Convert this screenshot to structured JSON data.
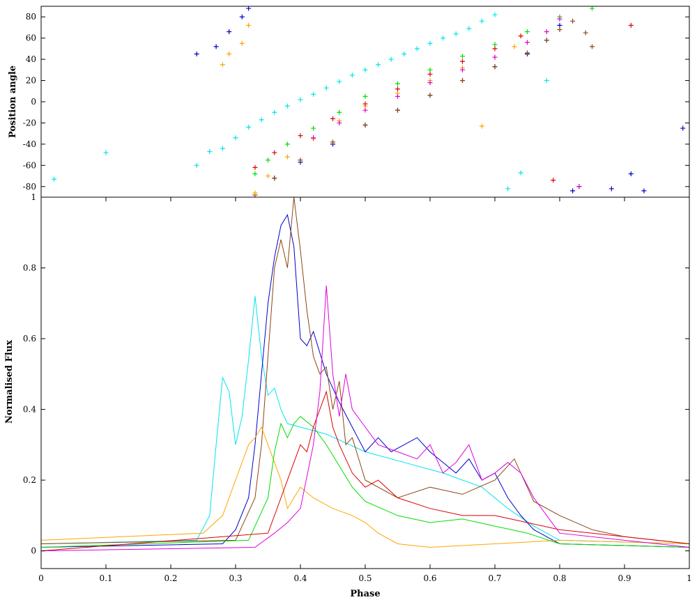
{
  "chart_data": [
    {
      "type": "scatter",
      "panel": "top",
      "ylabel": "Position angle",
      "xlabel": "",
      "xlim": [
        0,
        1
      ],
      "ylim": [
        -90,
        90
      ],
      "yticks": [
        "80",
        "60",
        "40",
        "20",
        "0",
        "-20",
        "-40",
        "-60",
        "-80"
      ],
      "ytick_values": [
        80,
        60,
        40,
        20,
        0,
        -20,
        -40,
        -60,
        -80
      ],
      "marker": "+",
      "series": [
        {
          "color": "#00e5ee",
          "x": [
            0.02,
            0.1,
            0.24,
            0.26,
            0.28,
            0.3,
            0.32,
            0.34,
            0.36,
            0.38,
            0.4,
            0.42,
            0.44,
            0.46,
            0.48,
            0.5,
            0.52,
            0.54,
            0.56,
            0.58,
            0.6,
            0.62,
            0.64,
            0.66,
            0.68,
            0.7,
            0.72,
            0.74,
            0.78
          ],
          "y": [
            -73,
            -48,
            -60,
            -47,
            -44,
            -34,
            -24,
            -17,
            -10,
            -4,
            2,
            7,
            13,
            19,
            25,
            30,
            35,
            40,
            45,
            50,
            55,
            60,
            64,
            69,
            76,
            82,
            -82,
            -67,
            20
          ]
        },
        {
          "color": "#0000cd",
          "x": [
            0.24,
            0.27,
            0.29,
            0.31,
            0.32,
            0.33,
            0.36,
            0.4,
            0.45,
            0.5,
            0.55,
            0.6,
            0.65,
            0.7,
            0.75,
            0.78,
            0.8,
            0.82,
            0.88,
            0.91,
            0.93,
            0.99
          ],
          "y": [
            45,
            52,
            66,
            80,
            88,
            -88,
            -72,
            -57,
            -40,
            -22,
            -8,
            6,
            20,
            33,
            45,
            58,
            72,
            -84,
            -82,
            -68,
            -84,
            -25
          ]
        },
        {
          "color": "#8b4513",
          "x": [
            0.33,
            0.36,
            0.4,
            0.45,
            0.5,
            0.55,
            0.6,
            0.65,
            0.7,
            0.75,
            0.78,
            0.8,
            0.82,
            0.84,
            0.85
          ],
          "y": [
            -88,
            -72,
            -55,
            -38,
            -22,
            -8,
            6,
            20,
            33,
            46,
            58,
            68,
            76,
            65,
            52
          ]
        },
        {
          "color": "#ffa500",
          "x": [
            0.28,
            0.29,
            0.31,
            0.32,
            0.33,
            0.35,
            0.38,
            0.42,
            0.46,
            0.5,
            0.55,
            0.6,
            0.65,
            0.68,
            0.7,
            0.73
          ],
          "y": [
            35,
            45,
            55,
            72,
            -86,
            -70,
            -52,
            -35,
            -18,
            -4,
            8,
            20,
            32,
            -23,
            42,
            52
          ]
        },
        {
          "color": "#00dd00",
          "x": [
            0.33,
            0.35,
            0.38,
            0.42,
            0.46,
            0.5,
            0.55,
            0.6,
            0.65,
            0.7,
            0.75,
            0.8,
            0.85
          ],
          "y": [
            -68,
            -55,
            -40,
            -25,
            -10,
            5,
            17,
            30,
            43,
            54,
            66,
            80,
            88
          ]
        },
        {
          "color": "#dd0000",
          "x": [
            0.33,
            0.36,
            0.4,
            0.45,
            0.5,
            0.55,
            0.6,
            0.65,
            0.7,
            0.74,
            0.79,
            0.83,
            0.91
          ],
          "y": [
            -62,
            -48,
            -32,
            -16,
            -2,
            12,
            26,
            38,
            50,
            62,
            -74,
            -80,
            72
          ]
        },
        {
          "color": "#dd00dd",
          "x": [
            0.42,
            0.46,
            0.5,
            0.55,
            0.6,
            0.65,
            0.7,
            0.75,
            0.78,
            0.8,
            0.83
          ],
          "y": [
            -34,
            -20,
            -8,
            5,
            18,
            30,
            42,
            56,
            66,
            78,
            -80
          ]
        }
      ]
    },
    {
      "type": "line",
      "panel": "bottom",
      "ylabel": "Normalised Flux",
      "xlabel": "Phase",
      "xlim": [
        0,
        1
      ],
      "ylim": [
        -0.05,
        1.0
      ],
      "xticks": [
        "0",
        "0.1",
        "0.2",
        "0.3",
        "0.4",
        "0.5",
        "0.6",
        "0.7",
        "0.8",
        "0.9",
        "1"
      ],
      "xtick_values": [
        0,
        0.1,
        0.2,
        0.3,
        0.4,
        0.5,
        0.6,
        0.7,
        0.8,
        0.9,
        1
      ],
      "yticks": [
        "0",
        "0.2",
        "0.4",
        "0.6",
        "0.8",
        "1"
      ],
      "ytick_values": [
        0,
        0.2,
        0.4,
        0.6,
        0.8,
        1
      ],
      "series": [
        {
          "color": "#00e5ee",
          "x": [
            0,
            0.24,
            0.26,
            0.27,
            0.28,
            0.29,
            0.3,
            0.31,
            0.32,
            0.33,
            0.34,
            0.35,
            0.36,
            0.37,
            0.38,
            0.4,
            0.44,
            0.5,
            0.56,
            0.62,
            0.68,
            0.72,
            0.76,
            0.8,
            1
          ],
          "y": [
            0.02,
            0.03,
            0.1,
            0.3,
            0.49,
            0.45,
            0.3,
            0.38,
            0.54,
            0.72,
            0.55,
            0.44,
            0.46,
            0.4,
            0.36,
            0.35,
            0.33,
            0.28,
            0.25,
            0.22,
            0.18,
            0.12,
            0.07,
            0.03,
            0.02
          ]
        },
        {
          "color": "#0000cd",
          "x": [
            0,
            0.28,
            0.3,
            0.32,
            0.33,
            0.34,
            0.35,
            0.36,
            0.37,
            0.38,
            0.39,
            0.4,
            0.41,
            0.42,
            0.44,
            0.46,
            0.48,
            0.5,
            0.52,
            0.54,
            0.56,
            0.58,
            0.6,
            0.62,
            0.64,
            0.66,
            0.68,
            0.7,
            0.72,
            0.74,
            0.76,
            0.8,
            1
          ],
          "y": [
            0.01,
            0.02,
            0.06,
            0.15,
            0.3,
            0.5,
            0.7,
            0.83,
            0.92,
            0.95,
            0.86,
            0.6,
            0.58,
            0.62,
            0.5,
            0.42,
            0.35,
            0.28,
            0.32,
            0.28,
            0.3,
            0.32,
            0.28,
            0.25,
            0.22,
            0.26,
            0.2,
            0.22,
            0.15,
            0.1,
            0.06,
            0.02,
            0.01
          ]
        },
        {
          "color": "#8b4513",
          "x": [
            0,
            0.3,
            0.33,
            0.34,
            0.35,
            0.36,
            0.37,
            0.38,
            0.39,
            0.4,
            0.41,
            0.42,
            0.43,
            0.44,
            0.45,
            0.46,
            0.47,
            0.48,
            0.5,
            0.55,
            0.6,
            0.65,
            0.7,
            0.73,
            0.76,
            0.8,
            0.85,
            0.9,
            1
          ],
          "y": [
            0.02,
            0.03,
            0.15,
            0.3,
            0.55,
            0.8,
            0.88,
            0.8,
            1.0,
            0.85,
            0.68,
            0.55,
            0.5,
            0.52,
            0.4,
            0.48,
            0.3,
            0.32,
            0.2,
            0.15,
            0.18,
            0.16,
            0.2,
            0.26,
            0.14,
            0.1,
            0.06,
            0.04,
            0.02
          ]
        },
        {
          "color": "#ffa500",
          "x": [
            0,
            0.25,
            0.28,
            0.3,
            0.32,
            0.33,
            0.34,
            0.35,
            0.36,
            0.37,
            0.38,
            0.39,
            0.4,
            0.42,
            0.45,
            0.48,
            0.5,
            0.52,
            0.55,
            0.6,
            0.7,
            0.8,
            1
          ],
          "y": [
            0.03,
            0.05,
            0.1,
            0.2,
            0.3,
            0.32,
            0.35,
            0.3,
            0.25,
            0.2,
            0.12,
            0.15,
            0.18,
            0.15,
            0.12,
            0.1,
            0.08,
            0.05,
            0.02,
            0.01,
            0.02,
            0.03,
            0.02
          ]
        },
        {
          "color": "#00dd00",
          "x": [
            0,
            0.32,
            0.35,
            0.36,
            0.37,
            0.38,
            0.39,
            0.4,
            0.42,
            0.44,
            0.46,
            0.48,
            0.5,
            0.55,
            0.6,
            0.65,
            0.7,
            0.75,
            0.8,
            1
          ],
          "y": [
            0.01,
            0.03,
            0.15,
            0.28,
            0.36,
            0.32,
            0.36,
            0.38,
            0.35,
            0.3,
            0.24,
            0.18,
            0.14,
            0.1,
            0.08,
            0.09,
            0.07,
            0.05,
            0.02,
            0.01
          ]
        },
        {
          "color": "#dd0000",
          "x": [
            0,
            0.35,
            0.37,
            0.38,
            0.39,
            0.4,
            0.41,
            0.42,
            0.43,
            0.44,
            0.45,
            0.46,
            0.48,
            0.5,
            0.52,
            0.55,
            0.6,
            0.65,
            0.7,
            0.75,
            0.8,
            0.9,
            1
          ],
          "y": [
            0.0,
            0.05,
            0.15,
            0.2,
            0.25,
            0.3,
            0.28,
            0.35,
            0.4,
            0.45,
            0.35,
            0.3,
            0.22,
            0.18,
            0.2,
            0.15,
            0.12,
            0.1,
            0.1,
            0.08,
            0.06,
            0.04,
            0.02
          ]
        },
        {
          "color": "#dd00dd",
          "x": [
            0,
            0.33,
            0.36,
            0.38,
            0.4,
            0.42,
            0.43,
            0.44,
            0.45,
            0.46,
            0.47,
            0.48,
            0.5,
            0.52,
            0.55,
            0.58,
            0.6,
            0.62,
            0.64,
            0.66,
            0.68,
            0.7,
            0.72,
            0.74,
            0.76,
            0.78,
            0.8,
            1
          ],
          "y": [
            0.0,
            0.01,
            0.05,
            0.08,
            0.12,
            0.3,
            0.45,
            0.75,
            0.5,
            0.38,
            0.5,
            0.4,
            0.35,
            0.3,
            0.28,
            0.26,
            0.3,
            0.22,
            0.25,
            0.3,
            0.2,
            0.22,
            0.25,
            0.22,
            0.15,
            0.1,
            0.05,
            0.01
          ]
        }
      ]
    }
  ]
}
